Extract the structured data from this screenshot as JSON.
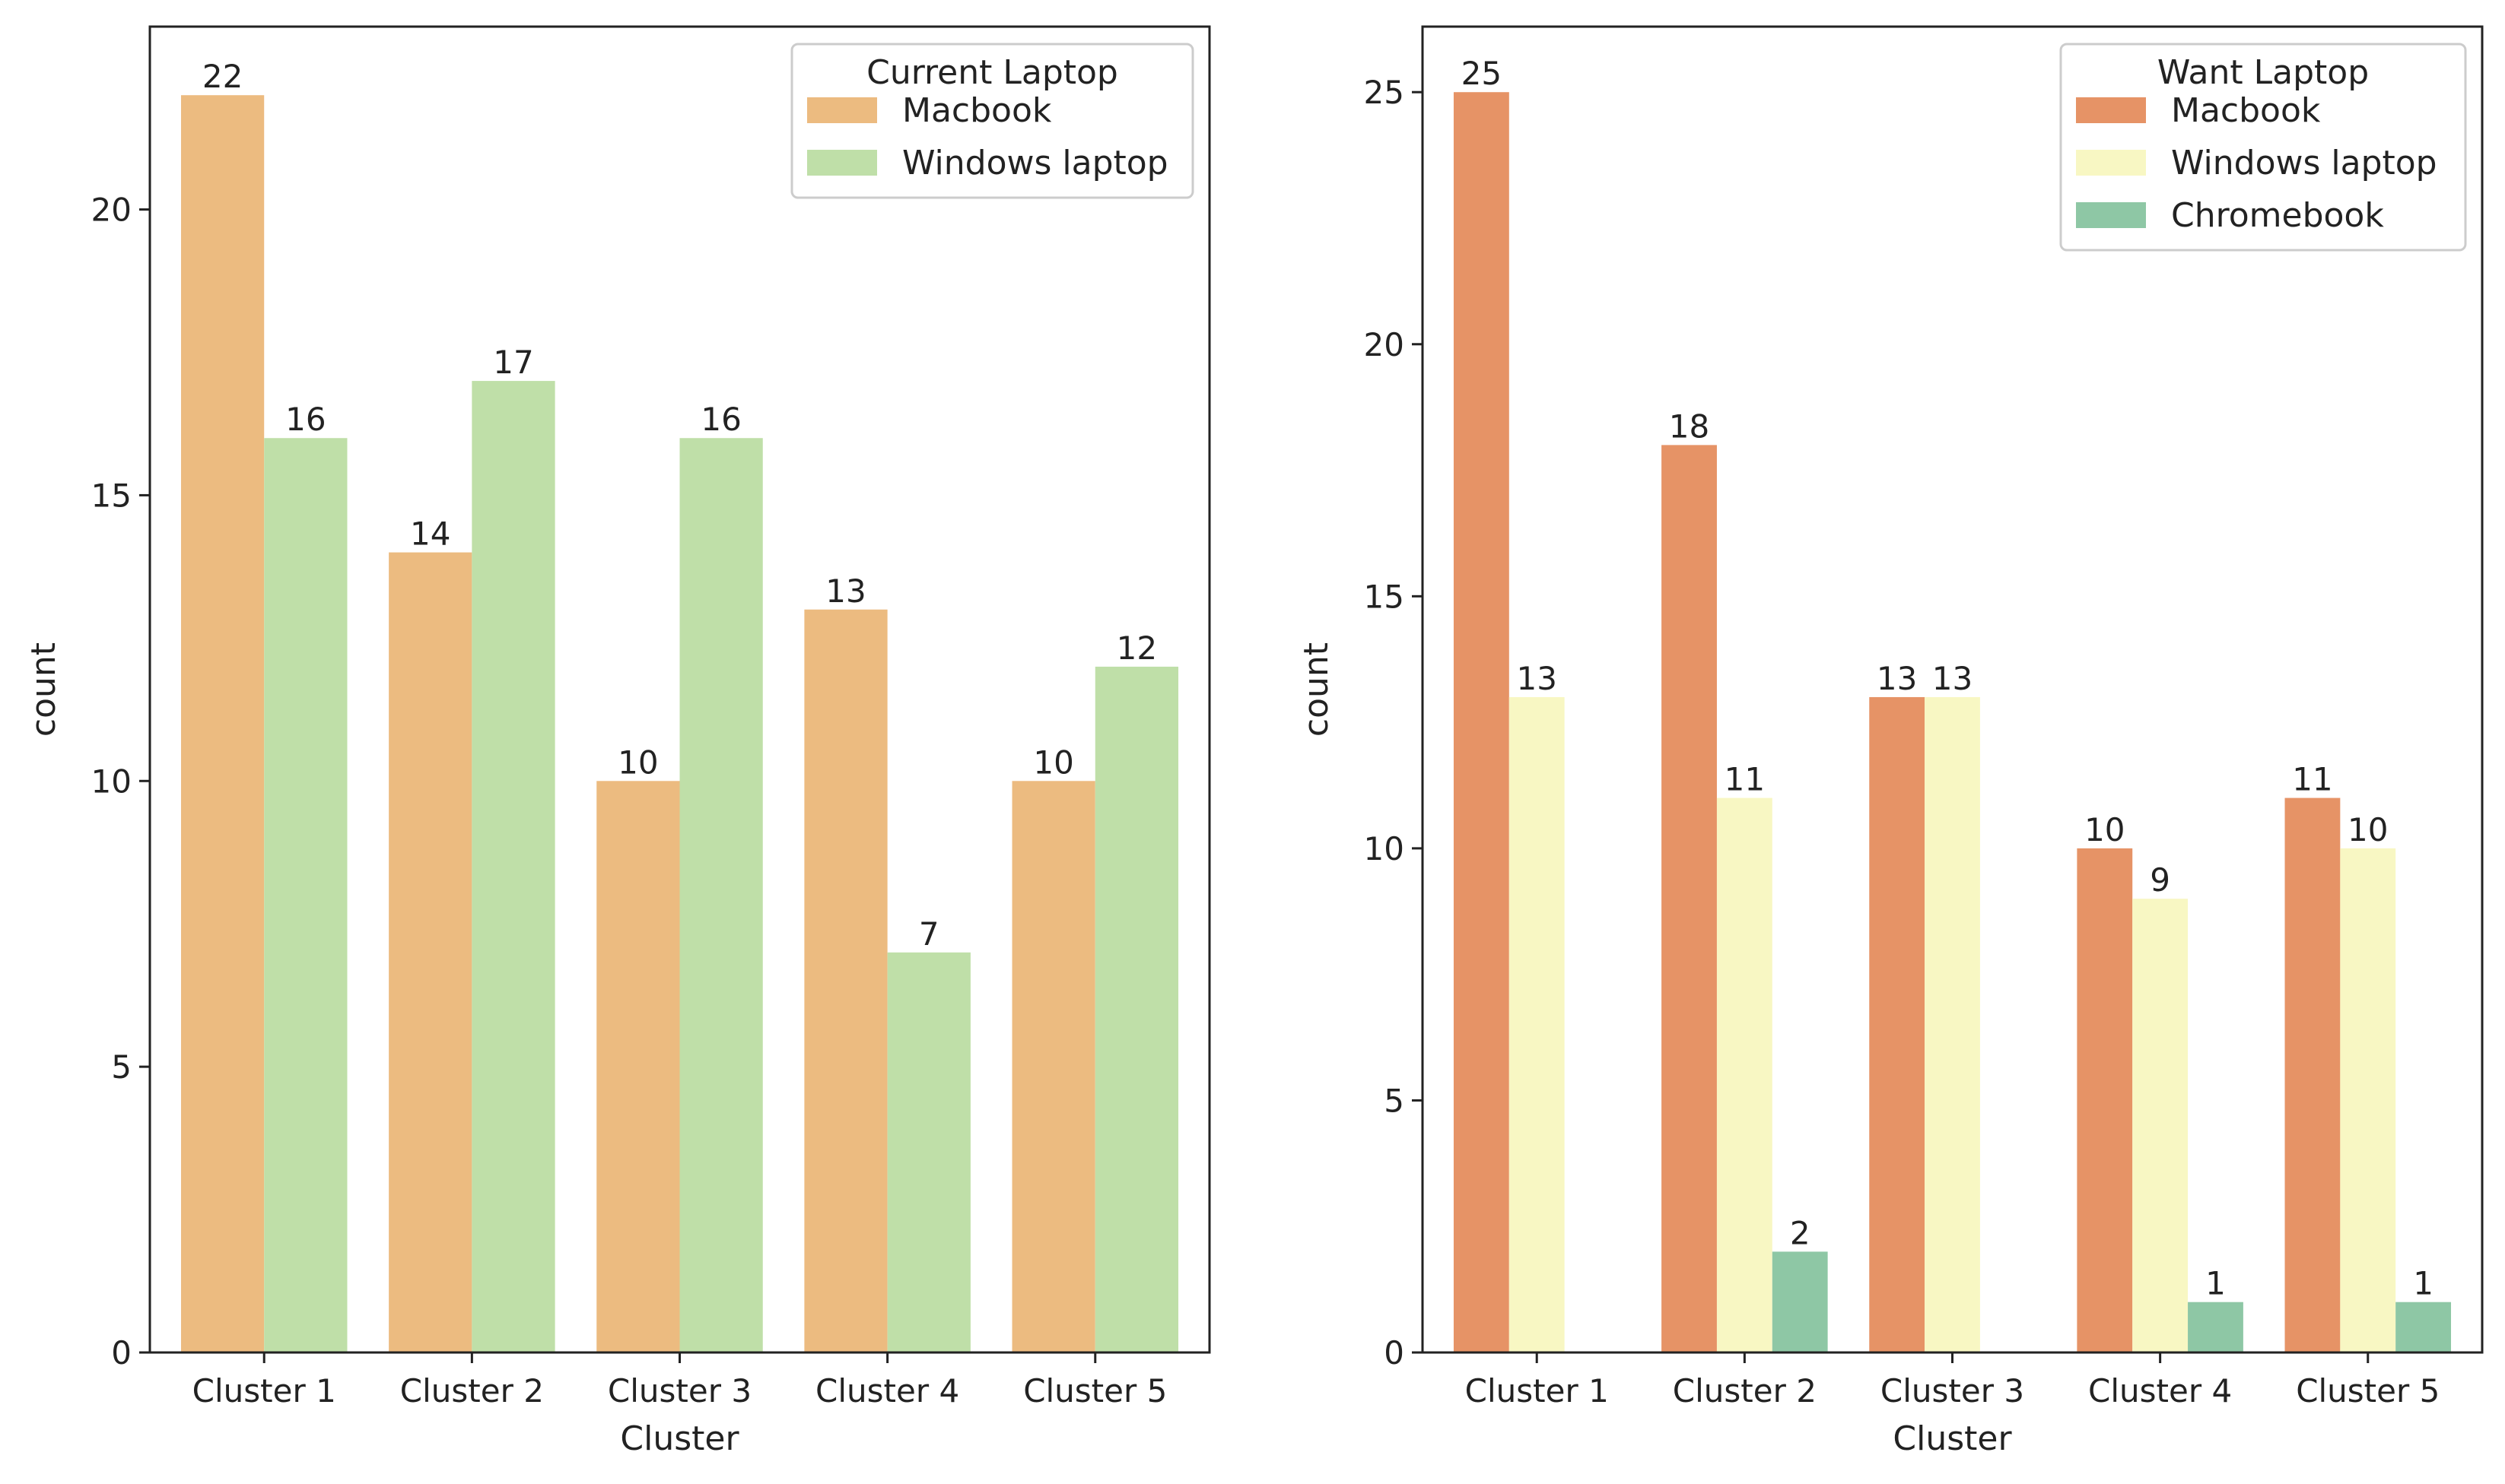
{
  "chart_data": [
    {
      "type": "bar",
      "xlabel": "Cluster",
      "ylabel": "count",
      "categories": [
        "Cluster 1",
        "Cluster 2",
        "Cluster 3",
        "Cluster 4",
        "Cluster 5"
      ],
      "ylim": [
        0,
        23.2
      ],
      "yticks": [
        0,
        5,
        10,
        15,
        20
      ],
      "legend": {
        "title": "Current Laptop",
        "placement": "top-right"
      },
      "series": [
        {
          "name": "Macbook",
          "color": "#ecbb80",
          "values": [
            22,
            14,
            10,
            13,
            10
          ]
        },
        {
          "name": "Windows laptop",
          "color": "#bfdfa8",
          "values": [
            16,
            17,
            16,
            7,
            12
          ]
        }
      ]
    },
    {
      "type": "bar",
      "xlabel": "Cluster",
      "ylabel": "count",
      "categories": [
        "Cluster 1",
        "Cluster 2",
        "Cluster 3",
        "Cluster 4",
        "Cluster 5"
      ],
      "ylim": [
        0,
        26.3
      ],
      "yticks": [
        0,
        5,
        10,
        15,
        20,
        25
      ],
      "legend": {
        "title": "Want Laptop",
        "placement": "top-right"
      },
      "series": [
        {
          "name": "Macbook",
          "color": "#e69366",
          "values": [
            25,
            18,
            13,
            10,
            11
          ]
        },
        {
          "name": "Windows laptop",
          "color": "#f8f7c3",
          "values": [
            13,
            11,
            13,
            9,
            10
          ]
        },
        {
          "name": "Chromebook",
          "color": "#8ec7a5",
          "values": [
            0,
            2,
            0,
            1,
            1
          ]
        }
      ]
    }
  ]
}
